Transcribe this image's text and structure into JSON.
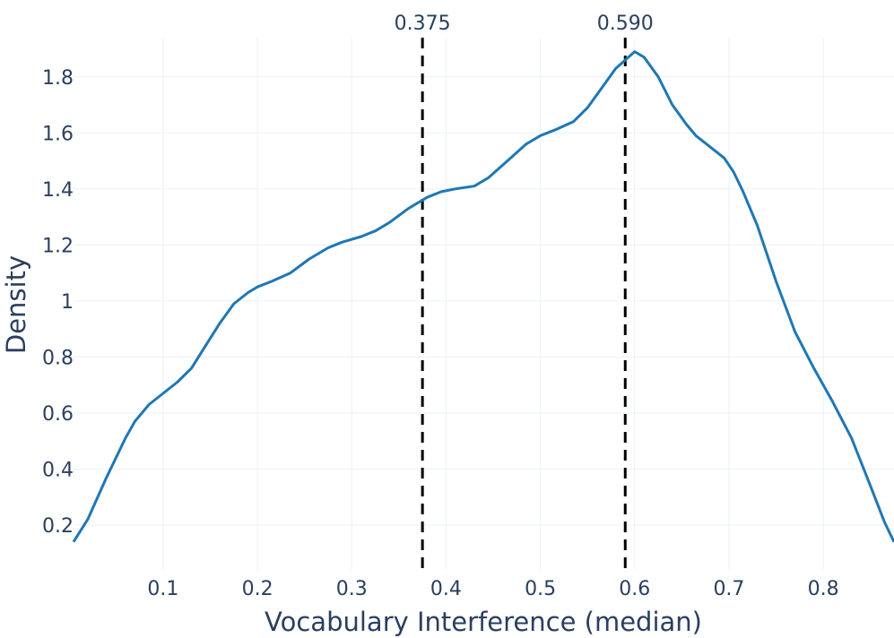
{
  "chart_data": {
    "type": "line",
    "xlabel": "Vocabulary Interference (median)",
    "ylabel": "Density",
    "xlim": [
      0.005,
      0.875
    ],
    "ylim": [
      0.04,
      1.94
    ],
    "x_ticks": [
      "0.1",
      "0.2",
      "0.3",
      "0.4",
      "0.5",
      "0.6",
      "0.7",
      "0.8"
    ],
    "x_tick_values": [
      0.1,
      0.2,
      0.3,
      0.4,
      0.5,
      0.6,
      0.7,
      0.8
    ],
    "y_ticks": [
      "0.2",
      "0.4",
      "0.6",
      "0.8",
      "1",
      "1.2",
      "1.4",
      "1.6",
      "1.8"
    ],
    "y_tick_values": [
      0.2,
      0.4,
      0.6,
      0.8,
      1.0,
      1.2,
      1.4,
      1.6,
      1.8
    ],
    "grid": true,
    "line_color": "#1f77b4",
    "series": [
      {
        "x": [
          0.005,
          0.02,
          0.04,
          0.06,
          0.07,
          0.085,
          0.1,
          0.115,
          0.13,
          0.145,
          0.16,
          0.175,
          0.19,
          0.2,
          0.215,
          0.235,
          0.255,
          0.275,
          0.29,
          0.31,
          0.325,
          0.34,
          0.36,
          0.38,
          0.395,
          0.41,
          0.43,
          0.445,
          0.465,
          0.485,
          0.5,
          0.515,
          0.535,
          0.55,
          0.565,
          0.58,
          0.59,
          0.6,
          0.61,
          0.625,
          0.64,
          0.655,
          0.665,
          0.68,
          0.695,
          0.705,
          0.715,
          0.73,
          0.75,
          0.77,
          0.79,
          0.81,
          0.83,
          0.85,
          0.865,
          0.875
        ],
        "y": [
          0.14,
          0.22,
          0.37,
          0.51,
          0.57,
          0.63,
          0.67,
          0.71,
          0.76,
          0.84,
          0.92,
          0.99,
          1.03,
          1.05,
          1.07,
          1.1,
          1.15,
          1.19,
          1.21,
          1.23,
          1.25,
          1.28,
          1.33,
          1.37,
          1.39,
          1.4,
          1.41,
          1.44,
          1.5,
          1.56,
          1.59,
          1.61,
          1.64,
          1.69,
          1.76,
          1.83,
          1.86,
          1.89,
          1.87,
          1.8,
          1.7,
          1.63,
          1.59,
          1.55,
          1.51,
          1.46,
          1.39,
          1.27,
          1.07,
          0.89,
          0.76,
          0.64,
          0.51,
          0.34,
          0.21,
          0.14
        ]
      }
    ],
    "reference_lines": [
      {
        "x": 0.375,
        "label": "0.375"
      },
      {
        "x": 0.59,
        "label": "0.590"
      }
    ]
  }
}
